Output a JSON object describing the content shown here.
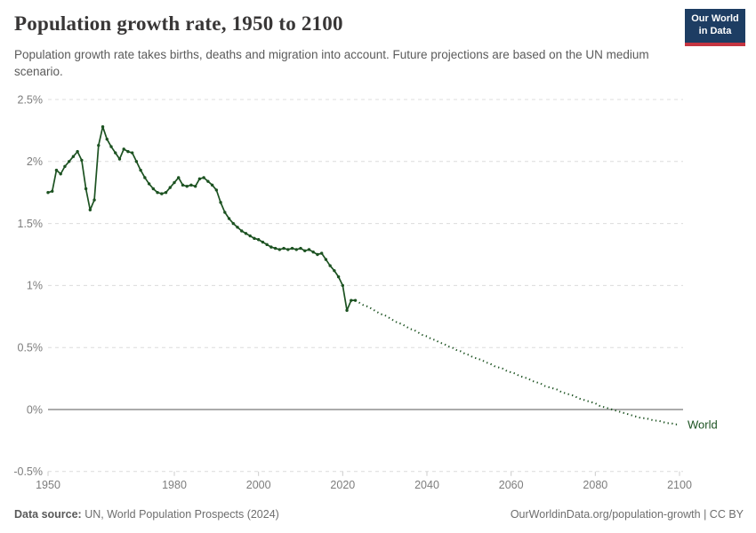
{
  "header": {
    "title": "Population growth rate, 1950 to 2100",
    "subtitle": "Population growth rate takes births, deaths and migration into account. Future projections are based on the UN medium scenario.",
    "logo": {
      "line1": "Our World",
      "line2": "in Data",
      "bg_color": "#1d3d63",
      "accent_color": "#c53541"
    }
  },
  "footer": {
    "source_label": "Data source:",
    "source_value": " UN, World Population Prospects (2024)",
    "link": "OurWorldinData.org/population-growth | CC BY"
  },
  "chart_data": {
    "type": "line",
    "title": "Population growth rate, 1950 to 2100",
    "xlabel": "",
    "ylabel": "",
    "unit": "%",
    "grid": true,
    "legend_position": "end-of-line",
    "series_label": "World",
    "line_color": "#1c5221",
    "grid_color": "#dcdcdc",
    "zero_line_color": "#ababab",
    "tick_label_color": "#7d7d7d",
    "xlim": [
      1950,
      2100
    ],
    "ylim": [
      -0.5,
      2.5
    ],
    "x_ticks": [
      1950,
      1980,
      2000,
      2020,
      2040,
      2060,
      2080,
      2100
    ],
    "y_ticks": [
      -0.5,
      0,
      0.5,
      1,
      1.5,
      2,
      2.5
    ],
    "observed": {
      "name": "World (estimates)",
      "style": "solid-with-markers",
      "start_year": 1950,
      "values": [
        1.75,
        1.76,
        1.93,
        1.9,
        1.96,
        2.0,
        2.04,
        2.08,
        2.01,
        1.78,
        1.61,
        1.69,
        2.13,
        2.28,
        2.18,
        2.12,
        2.07,
        2.02,
        2.1,
        2.08,
        2.07,
        2.0,
        1.93,
        1.87,
        1.82,
        1.78,
        1.75,
        1.74,
        1.75,
        1.79,
        1.83,
        1.87,
        1.81,
        1.8,
        1.81,
        1.8,
        1.86,
        1.87,
        1.84,
        1.81,
        1.77,
        1.67,
        1.59,
        1.54,
        1.5,
        1.47,
        1.44,
        1.42,
        1.4,
        1.38,
        1.37,
        1.35,
        1.33,
        1.31,
        1.3,
        1.29,
        1.3,
        1.29,
        1.3,
        1.29,
        1.3,
        1.28,
        1.29,
        1.27,
        1.25,
        1.26,
        1.21,
        1.16,
        1.12,
        1.07,
        1.0,
        0.8,
        0.88,
        0.88
      ]
    },
    "projected": {
      "name": "World (UN medium scenario projection)",
      "style": "dotted",
      "start_year": 2024,
      "values": [
        0.86,
        0.84,
        0.83,
        0.81,
        0.79,
        0.77,
        0.76,
        0.74,
        0.72,
        0.7,
        0.69,
        0.67,
        0.65,
        0.64,
        0.62,
        0.6,
        0.59,
        0.57,
        0.56,
        0.54,
        0.53,
        0.51,
        0.5,
        0.48,
        0.47,
        0.45,
        0.44,
        0.42,
        0.41,
        0.4,
        0.38,
        0.37,
        0.35,
        0.34,
        0.33,
        0.31,
        0.3,
        0.29,
        0.27,
        0.26,
        0.25,
        0.23,
        0.22,
        0.21,
        0.19,
        0.18,
        0.17,
        0.16,
        0.14,
        0.13,
        0.12,
        0.11,
        0.09,
        0.08,
        0.07,
        0.06,
        0.05,
        0.03,
        0.02,
        0.01,
        0.0,
        -0.01,
        -0.02,
        -0.03,
        -0.04,
        -0.05,
        -0.06,
        -0.07,
        -0.07,
        -0.08,
        -0.09,
        -0.09,
        -0.1,
        -0.11,
        -0.11,
        -0.12,
        -0.12
      ]
    }
  }
}
